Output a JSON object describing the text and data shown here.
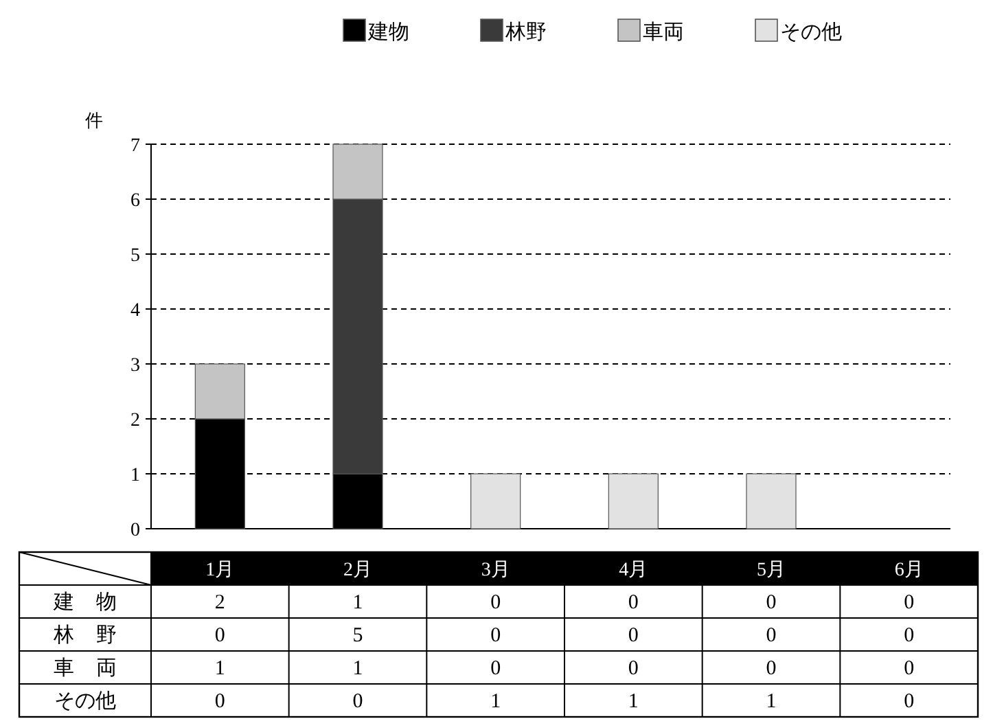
{
  "chart_data": {
    "type": "bar",
    "stacked": true,
    "ylabel": "件",
    "categories": [
      "1月",
      "2月",
      "3月",
      "4月",
      "5月",
      "6月"
    ],
    "series": [
      {
        "name": "建物",
        "color": "#000000",
        "values": [
          2,
          1,
          0,
          0,
          0,
          0
        ]
      },
      {
        "name": "林野",
        "color": "#3a3a3a",
        "values": [
          0,
          5,
          0,
          0,
          0,
          0
        ]
      },
      {
        "name": "車両",
        "color": "#c4c4c4",
        "values": [
          1,
          1,
          0,
          0,
          0,
          0
        ]
      },
      {
        "name": "その他",
        "color": "#e2e2e2",
        "values": [
          0,
          0,
          1,
          1,
          1,
          0
        ]
      }
    ],
    "ylim": [
      0,
      7
    ],
    "yticks": [
      0,
      1,
      2,
      3,
      4,
      5,
      6,
      7
    ],
    "grid": "y",
    "line_style": "dashed",
    "legend": "top",
    "data_labels": true
  }
}
